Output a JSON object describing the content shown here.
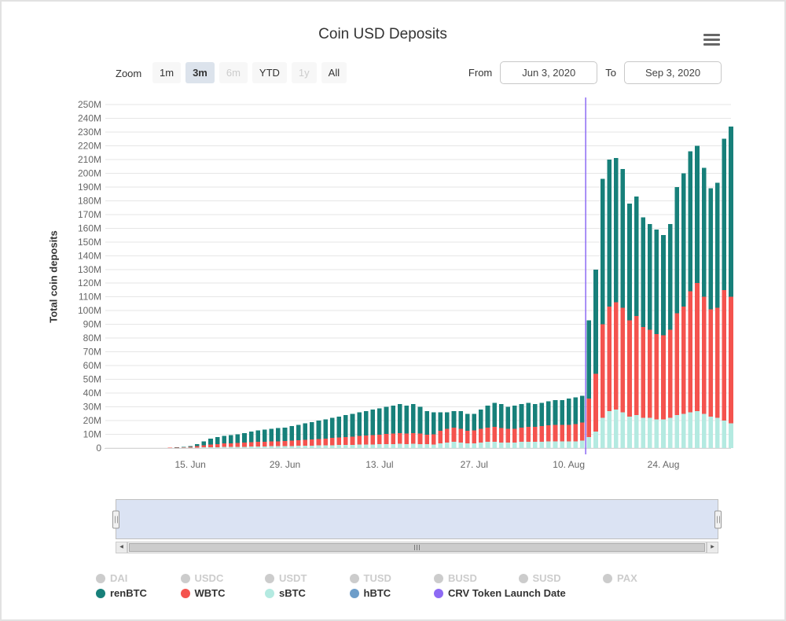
{
  "header": {
    "title": "Coin USD Deposits"
  },
  "toolbar": {
    "zoom_label": "Zoom",
    "buttons": [
      {
        "label": "1m",
        "state": "normal"
      },
      {
        "label": "3m",
        "state": "selected"
      },
      {
        "label": "6m",
        "state": "disabled"
      },
      {
        "label": "YTD",
        "state": "normal"
      },
      {
        "label": "1y",
        "state": "disabled"
      },
      {
        "label": "All",
        "state": "normal"
      }
    ],
    "from_label": "From",
    "from_value": "Jun 3, 2020",
    "to_label": "To",
    "to_value": "Sep 3, 2020"
  },
  "chart_data": {
    "type": "bar",
    "stacked": true,
    "title": "Coin USD Deposits",
    "ylabel": "Total coin deposits",
    "units": "USD millions",
    "ylim_m": [
      0,
      250
    ],
    "y_tick_step_m": 10,
    "y_tick_labels": [
      "0",
      "10M",
      "20M",
      "30M",
      "40M",
      "50M",
      "60M",
      "70M",
      "80M",
      "90M",
      "100M",
      "110M",
      "120M",
      "130M",
      "140M",
      "150M",
      "160M",
      "170M",
      "180M",
      "190M",
      "200M",
      "210M",
      "220M",
      "230M",
      "240M",
      "250M"
    ],
    "x_start": "Jun 3, 2020",
    "x_end": "Sep 3, 2020",
    "interval": "daily",
    "num_days": 93,
    "x_ticks": [
      {
        "label": "15. Jun",
        "day_index": 12
      },
      {
        "label": "29. Jun",
        "day_index": 26
      },
      {
        "label": "13. Jul",
        "day_index": 40
      },
      {
        "label": "27. Jul",
        "day_index": 54
      },
      {
        "label": "10. Aug",
        "day_index": 68
      },
      {
        "label": "24. Aug",
        "day_index": 82
      }
    ],
    "series": [
      {
        "name": "sBTC",
        "color": "#b4eae1",
        "values": [
          0,
          0,
          0,
          0,
          0,
          0,
          0,
          0,
          0,
          0.1,
          0.1,
          0.2,
          0.3,
          0.4,
          0.5,
          0.6,
          0.7,
          0.8,
          0.9,
          1,
          1,
          1.1,
          1.2,
          1.2,
          1.3,
          1.3,
          1.4,
          1.5,
          1.6,
          1.7,
          1.8,
          1.9,
          2,
          2.1,
          2.2,
          2.3,
          2.4,
          2.5,
          2.6,
          2.7,
          2.8,
          2.9,
          3,
          3.1,
          3,
          3.1,
          3,
          2.8,
          2.7,
          3.5,
          4,
          4.5,
          4,
          3.5,
          3.5,
          4,
          4.5,
          4.5,
          4,
          4,
          4,
          4.5,
          4.5,
          4.5,
          4.5,
          5,
          5,
          5,
          5,
          5,
          5.5,
          8,
          12,
          22,
          27,
          28,
          26,
          23,
          24,
          22,
          22,
          21,
          21,
          22,
          24,
          25,
          26,
          27,
          25,
          23,
          22,
          20,
          18
        ]
      },
      {
        "name": "WBTC",
        "color": "#f4534e",
        "values": [
          0,
          0,
          0,
          0,
          0,
          0,
          0,
          0,
          0,
          0.1,
          0.2,
          0.3,
          0.5,
          1,
          1.5,
          2,
          2.3,
          2.5,
          2.6,
          2.8,
          3,
          3.2,
          3.4,
          3.5,
          3.6,
          3.7,
          3.8,
          4,
          4.2,
          4.4,
          4.6,
          4.8,
          5,
          5.2,
          5.5,
          5.8,
          6,
          6.3,
          6.5,
          6.8,
          7,
          7.3,
          7.5,
          7.8,
          7.5,
          7.8,
          7.5,
          7,
          7.2,
          9,
          10,
          10.5,
          10,
          9,
          9.5,
          10,
          10.5,
          11,
          10.5,
          10,
          10,
          10.5,
          11,
          11,
          11.5,
          11.5,
          12,
          12,
          12,
          12.5,
          13,
          28,
          42,
          68,
          76,
          78,
          76,
          70,
          72,
          66,
          64,
          62,
          61,
          64,
          74,
          78,
          88,
          93,
          85,
          78,
          80,
          95,
          92
        ]
      },
      {
        "name": "renBTC",
        "color": "#17807a",
        "values": [
          0,
          0,
          0,
          0,
          0,
          0,
          0,
          0,
          0,
          0.1,
          0.2,
          0.3,
          0.7,
          1.6,
          3,
          4.4,
          5,
          5.7,
          6,
          6.2,
          7,
          7.7,
          8.4,
          8.8,
          9.1,
          9.5,
          9.8,
          10.5,
          11.2,
          11.9,
          12.6,
          13.3,
          14,
          14.7,
          15.3,
          15.9,
          16.6,
          17.2,
          17.9,
          18.5,
          19.2,
          19.8,
          20.5,
          21.1,
          20.5,
          21.1,
          19.5,
          17.2,
          16.1,
          13.5,
          12,
          12,
          13,
          12.5,
          12,
          14,
          16,
          17.5,
          17.5,
          16,
          17,
          17,
          17.5,
          16.5,
          17,
          17.5,
          18,
          18,
          19,
          19.5,
          19.5,
          57,
          76,
          106,
          107,
          105,
          101,
          85,
          87,
          80,
          77,
          76,
          73,
          77,
          92,
          97,
          102,
          100,
          94,
          88,
          91,
          110,
          124
        ]
      },
      {
        "name": "hBTC",
        "color": "#6d9dc9",
        "values": []
      }
    ],
    "annotation": {
      "type": "vertical_line",
      "label": "CRV Token Launch Date",
      "color": "#8d6af4",
      "day_index": 70.5
    },
    "grid": true,
    "legend_position": "bottom"
  },
  "navigator": {
    "selected_range": "full"
  },
  "legend": {
    "rows": [
      {
        "items": [
          {
            "label": "DAI",
            "color": "#cccccc",
            "enabled": false
          },
          {
            "label": "USDC",
            "color": "#cccccc",
            "enabled": false
          },
          {
            "label": "USDT",
            "color": "#cccccc",
            "enabled": false
          },
          {
            "label": "TUSD",
            "color": "#cccccc",
            "enabled": false
          },
          {
            "label": "BUSD",
            "color": "#cccccc",
            "enabled": false
          },
          {
            "label": "SUSD",
            "color": "#cccccc",
            "enabled": false
          },
          {
            "label": "PAX",
            "color": "#cccccc",
            "enabled": false
          }
        ]
      },
      {
        "items": [
          {
            "label": "renBTC",
            "color": "#17807a",
            "enabled": true
          },
          {
            "label": "WBTC",
            "color": "#f4534e",
            "enabled": true
          },
          {
            "label": "sBTC",
            "color": "#b4eae1",
            "enabled": true
          },
          {
            "label": "hBTC",
            "color": "#6d9dc9",
            "enabled": true
          },
          {
            "label": "CRV Token Launch Date",
            "color": "#8d6af4",
            "enabled": true
          }
        ]
      }
    ]
  }
}
